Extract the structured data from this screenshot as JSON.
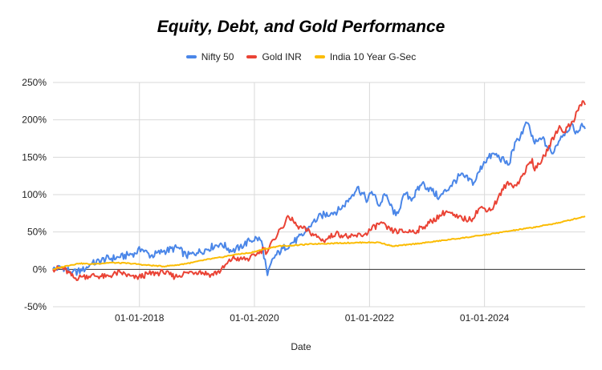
{
  "chart_data": {
    "type": "line",
    "title": "Equity, Debt, and Gold Performance",
    "xlabel": "Date",
    "ylabel": "",
    "xlim": [
      "2016-07-01",
      "2025-10-01"
    ],
    "ylim": [
      -50,
      250
    ],
    "yticks": [
      "-50%",
      "0%",
      "50%",
      "100%",
      "150%",
      "200%",
      "250%"
    ],
    "xticks": [
      "01-01-2018",
      "01-01-2020",
      "01-01-2022",
      "01-01-2024"
    ],
    "legend_position": "top",
    "grid": true,
    "series": [
      {
        "name": "Nifty 50",
        "color": "#4a86e8",
        "points": [
          [
            "2016-07-01",
            0
          ],
          [
            "2016-09-01",
            3
          ],
          [
            "2016-11-01",
            -4
          ],
          [
            "2017-01-01",
            -2
          ],
          [
            "2017-03-01",
            7
          ],
          [
            "2017-06-01",
            14
          ],
          [
            "2017-09-01",
            16
          ],
          [
            "2017-12-01",
            22
          ],
          [
            "2018-01-15",
            27
          ],
          [
            "2018-03-15",
            18
          ],
          [
            "2018-06-01",
            24
          ],
          [
            "2018-09-01",
            29
          ],
          [
            "2018-10-25",
            18
          ],
          [
            "2019-01-01",
            22
          ],
          [
            "2019-03-01",
            27
          ],
          [
            "2019-06-01",
            35
          ],
          [
            "2019-08-15",
            24
          ],
          [
            "2019-10-01",
            30
          ],
          [
            "2019-12-01",
            38
          ],
          [
            "2020-01-15",
            42
          ],
          [
            "2020-02-15",
            38
          ],
          [
            "2020-03-24",
            -8
          ],
          [
            "2020-04-30",
            15
          ],
          [
            "2020-06-30",
            28
          ],
          [
            "2020-09-01",
            36
          ],
          [
            "2020-11-01",
            45
          ],
          [
            "2021-01-01",
            62
          ],
          [
            "2021-03-01",
            72
          ],
          [
            "2021-05-01",
            75
          ],
          [
            "2021-07-01",
            80
          ],
          [
            "2021-09-15",
            100
          ],
          [
            "2021-10-15",
            110
          ],
          [
            "2021-12-20",
            92
          ],
          [
            "2022-01-15",
            104
          ],
          [
            "2022-03-07",
            85
          ],
          [
            "2022-04-05",
            101
          ],
          [
            "2022-06-17",
            72
          ],
          [
            "2022-08-15",
            100
          ],
          [
            "2022-10-01",
            95
          ],
          [
            "2022-12-01",
            115
          ],
          [
            "2023-02-01",
            105
          ],
          [
            "2023-03-20",
            96
          ],
          [
            "2023-06-01",
            112
          ],
          [
            "2023-08-01",
            126
          ],
          [
            "2023-10-26",
            116
          ],
          [
            "2023-12-29",
            144
          ],
          [
            "2024-03-01",
            155
          ],
          [
            "2024-06-04",
            140
          ],
          [
            "2024-06-28",
            160
          ],
          [
            "2024-09-27",
            196
          ],
          [
            "2024-11-15",
            168
          ],
          [
            "2025-01-01",
            175
          ],
          [
            "2025-03-04",
            155
          ],
          [
            "2025-05-01",
            178
          ],
          [
            "2025-06-30",
            192
          ],
          [
            "2025-08-15",
            183
          ],
          [
            "2025-09-10",
            195
          ],
          [
            "2025-10-01",
            188
          ]
        ]
      },
      {
        "name": "Gold INR",
        "color": "#ea4335",
        "points": [
          [
            "2016-07-01",
            0
          ],
          [
            "2016-09-01",
            2
          ],
          [
            "2016-11-15",
            -12
          ],
          [
            "2017-01-01",
            -10
          ],
          [
            "2017-03-01",
            -8
          ],
          [
            "2017-06-01",
            -10
          ],
          [
            "2017-09-01",
            -4
          ],
          [
            "2017-12-01",
            -12
          ],
          [
            "2018-03-01",
            -6
          ],
          [
            "2018-06-01",
            -4
          ],
          [
            "2018-08-15",
            -10
          ],
          [
            "2018-11-01",
            -4
          ],
          [
            "2019-01-15",
            -3
          ],
          [
            "2019-04-01",
            -7
          ],
          [
            "2019-06-01",
            -2
          ],
          [
            "2019-08-15",
            15
          ],
          [
            "2019-10-01",
            14
          ],
          [
            "2019-12-01",
            14
          ],
          [
            "2020-01-15",
            20
          ],
          [
            "2020-03-01",
            28
          ],
          [
            "2020-03-20",
            22
          ],
          [
            "2020-05-01",
            40
          ],
          [
            "2020-08-07",
            70
          ],
          [
            "2020-10-01",
            58
          ],
          [
            "2020-12-01",
            52
          ],
          [
            "2021-03-15",
            38
          ],
          [
            "2021-06-01",
            48
          ],
          [
            "2021-09-01",
            43
          ],
          [
            "2021-12-01",
            47
          ],
          [
            "2022-03-09",
            62
          ],
          [
            "2022-05-15",
            52
          ],
          [
            "2022-08-01",
            50
          ],
          [
            "2022-11-01",
            52
          ],
          [
            "2023-01-15",
            62
          ],
          [
            "2023-05-04",
            78
          ],
          [
            "2023-07-01",
            70
          ],
          [
            "2023-10-05",
            66
          ],
          [
            "2023-12-01",
            82
          ],
          [
            "2024-02-15",
            80
          ],
          [
            "2024-05-20",
            115
          ],
          [
            "2024-07-23",
            112
          ],
          [
            "2024-10-30",
            148
          ],
          [
            "2024-11-15",
            132
          ],
          [
            "2025-01-15",
            152
          ],
          [
            "2025-04-21",
            192
          ],
          [
            "2025-05-15",
            183
          ],
          [
            "2025-07-15",
            198
          ],
          [
            "2025-09-01",
            220
          ],
          [
            "2025-09-20",
            225
          ],
          [
            "2025-10-01",
            220
          ]
        ]
      },
      {
        "name": "India 10 Year G-Sec",
        "color": "#fbbc04",
        "points": [
          [
            "2016-07-01",
            0
          ],
          [
            "2016-10-01",
            5
          ],
          [
            "2016-12-15",
            8
          ],
          [
            "2017-03-01",
            7
          ],
          [
            "2017-07-01",
            9
          ],
          [
            "2017-11-01",
            8
          ],
          [
            "2018-02-01",
            6
          ],
          [
            "2018-06-01",
            4
          ],
          [
            "2018-09-01",
            6
          ],
          [
            "2018-12-01",
            9
          ],
          [
            "2019-03-01",
            13
          ],
          [
            "2019-06-01",
            16
          ],
          [
            "2019-09-01",
            20
          ],
          [
            "2019-12-01",
            22
          ],
          [
            "2020-03-01",
            27
          ],
          [
            "2020-06-01",
            31
          ],
          [
            "2020-09-01",
            32
          ],
          [
            "2021-01-01",
            34
          ],
          [
            "2021-06-01",
            35
          ],
          [
            "2021-12-01",
            36
          ],
          [
            "2022-03-01",
            36
          ],
          [
            "2022-06-01",
            31
          ],
          [
            "2022-09-01",
            33
          ],
          [
            "2023-01-01",
            36
          ],
          [
            "2023-06-01",
            40
          ],
          [
            "2023-12-01",
            45
          ],
          [
            "2024-06-01",
            51
          ],
          [
            "2024-12-01",
            57
          ],
          [
            "2025-05-01",
            63
          ],
          [
            "2025-10-01",
            71
          ]
        ]
      }
    ]
  }
}
